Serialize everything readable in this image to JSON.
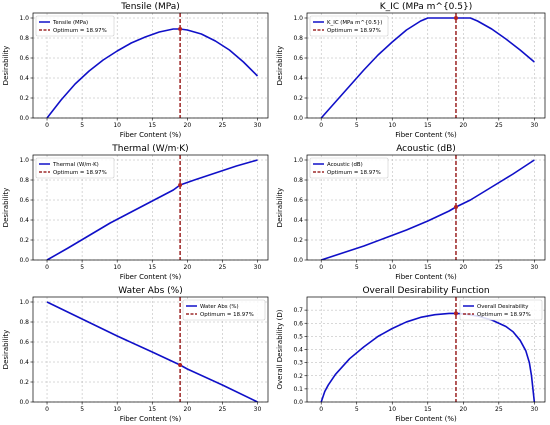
{
  "chart_data": [
    {
      "type": "line",
      "title": "Tensile (MPa)",
      "xlabel": "Fiber Content (%)",
      "ylabel": "Desirability",
      "xlim": [
        -2,
        31.5
      ],
      "ylim": [
        0,
        1.05
      ],
      "xticks": [
        "0",
        "5",
        "10",
        "15",
        "20",
        "25",
        "30"
      ],
      "yticks": [
        "0.0",
        "0.2",
        "0.4",
        "0.6",
        "0.8",
        "1.0"
      ],
      "grid": true,
      "legend": "top-left",
      "series": [
        {
          "name": "Tensile (MPa)",
          "color": "#1010c8",
          "x": [
            0,
            2,
            4,
            6,
            8,
            10,
            12,
            14,
            16,
            18,
            18.97,
            20,
            22,
            24,
            26,
            28,
            30
          ],
          "y": [
            0.0,
            0.18,
            0.34,
            0.47,
            0.58,
            0.67,
            0.75,
            0.81,
            0.86,
            0.89,
            0.89,
            0.88,
            0.84,
            0.77,
            0.68,
            0.56,
            0.42
          ]
        }
      ],
      "optimum": {
        "label": "Optimum = 18.97%",
        "x": 18.97,
        "y": 0.89,
        "color": "#8b0000"
      }
    },
    {
      "type": "line",
      "title": "K_IC (MPa m^{0.5})",
      "xlabel": "Fiber Content (%)",
      "ylabel": "Desirability",
      "xlim": [
        -2,
        31.5
      ],
      "ylim": [
        0,
        1.05
      ],
      "xticks": [
        "0",
        "5",
        "10",
        "15",
        "20",
        "25",
        "30"
      ],
      "yticks": [
        "0.0",
        "0.2",
        "0.4",
        "0.6",
        "0.8",
        "1.0"
      ],
      "grid": true,
      "legend": "top-left",
      "series": [
        {
          "name": "K_IC (MPa m^{0.5})",
          "color": "#1010c8",
          "x": [
            0,
            2,
            4,
            6,
            8,
            10,
            12,
            14,
            15,
            16,
            18,
            18.97,
            20,
            21,
            22,
            24,
            26,
            28,
            30
          ],
          "y": [
            0.0,
            0.16,
            0.32,
            0.48,
            0.63,
            0.76,
            0.88,
            0.97,
            1.0,
            1.0,
            1.0,
            1.0,
            1.0,
            1.0,
            0.97,
            0.89,
            0.79,
            0.68,
            0.56
          ]
        }
      ],
      "optimum": {
        "label": "Optimum = 18.97%",
        "x": 18.97,
        "y": 1.0,
        "color": "#8b0000"
      }
    },
    {
      "type": "line",
      "title": "Thermal (W/m·K)",
      "xlabel": "Fiber Content (%)",
      "ylabel": "Desirability",
      "xlim": [
        -2,
        31.5
      ],
      "ylim": [
        0,
        1.05
      ],
      "xticks": [
        "0",
        "5",
        "10",
        "15",
        "20",
        "25",
        "30"
      ],
      "yticks": [
        "0.0",
        "0.2",
        "0.4",
        "0.6",
        "0.8",
        "1.0"
      ],
      "grid": true,
      "legend": "top-left",
      "series": [
        {
          "name": "Thermal (W/m·K)",
          "color": "#1010c8",
          "x": [
            0,
            3,
            6,
            9,
            12,
            15,
            18,
            18.97,
            21,
            24,
            27,
            30
          ],
          "y": [
            0.0,
            0.12,
            0.245,
            0.37,
            0.48,
            0.59,
            0.7,
            0.75,
            0.8,
            0.87,
            0.94,
            1.0
          ]
        }
      ],
      "optimum": {
        "label": "Optimum = 18.97%",
        "x": 18.97,
        "y": 0.75,
        "color": "#8b0000"
      }
    },
    {
      "type": "line",
      "title": "Acoustic (dB)",
      "xlabel": "Fiber Content (%)",
      "ylabel": "Desirability",
      "xlim": [
        -2,
        31.5
      ],
      "ylim": [
        0,
        1.05
      ],
      "xticks": [
        "0",
        "5",
        "10",
        "15",
        "20",
        "25",
        "30"
      ],
      "yticks": [
        "0.0",
        "0.2",
        "0.4",
        "0.6",
        "0.8",
        "1.0"
      ],
      "grid": true,
      "legend": "top-left",
      "series": [
        {
          "name": "Acoustic (dB)",
          "color": "#1010c8",
          "x": [
            0,
            3,
            6,
            9,
            12,
            15,
            18,
            18.97,
            21,
            24,
            27,
            30
          ],
          "y": [
            0.0,
            0.07,
            0.14,
            0.22,
            0.3,
            0.39,
            0.49,
            0.53,
            0.6,
            0.73,
            0.86,
            1.0
          ]
        }
      ],
      "optimum": {
        "label": "Optimum = 18.97%",
        "x": 18.97,
        "y": 0.53,
        "color": "#8b0000"
      }
    },
    {
      "type": "line",
      "title": "Water Abs (%)",
      "xlabel": "Fiber Content (%)",
      "ylabel": "Desirability",
      "xlim": [
        -2,
        31.5
      ],
      "ylim": [
        0,
        1.05
      ],
      "xticks": [
        "0",
        "5",
        "10",
        "15",
        "20",
        "25",
        "30"
      ],
      "yticks": [
        "0.0",
        "0.2",
        "0.4",
        "0.6",
        "0.8",
        "1.0"
      ],
      "grid": true,
      "legend": "top-right",
      "series": [
        {
          "name": "Water Abs (%)",
          "color": "#1010c8",
          "x": [
            0,
            5,
            10,
            15,
            18.97,
            20,
            25,
            30
          ],
          "y": [
            1.0,
            0.83,
            0.66,
            0.5,
            0.37,
            0.33,
            0.17,
            0.0
          ]
        }
      ],
      "optimum": {
        "label": "Optimum = 18.97%",
        "x": 18.97,
        "y": 0.37,
        "color": "#8b0000"
      }
    },
    {
      "type": "line",
      "title": "Overall Desirability Function",
      "xlabel": "Fiber Content (%)",
      "ylabel": "Overall Desirability (D)",
      "xlim": [
        -2,
        31.5
      ],
      "ylim": [
        0,
        0.8
      ],
      "xticks": [
        "0",
        "5",
        "10",
        "15",
        "20",
        "25",
        "30"
      ],
      "yticks": [
        "0.0",
        "0.1",
        "0.2",
        "0.3",
        "0.4",
        "0.5",
        "0.6",
        "0.7"
      ],
      "grid": true,
      "legend": "top-right",
      "series": [
        {
          "name": "Overall Desirability",
          "color": "#1010c8",
          "x": [
            0,
            0.5,
            1,
            2,
            4,
            6,
            8,
            10,
            12,
            14,
            16,
            18,
            18.97,
            20,
            22,
            24,
            26,
            27,
            28,
            28.8,
            29.3,
            29.6,
            29.8,
            30
          ],
          "y": [
            0.0,
            0.08,
            0.13,
            0.21,
            0.33,
            0.42,
            0.5,
            0.56,
            0.61,
            0.645,
            0.665,
            0.675,
            0.675,
            0.672,
            0.655,
            0.625,
            0.575,
            0.535,
            0.47,
            0.39,
            0.3,
            0.2,
            0.1,
            0.0
          ]
        }
      ],
      "optimum": {
        "label": "Optimum = 18.97%",
        "x": 18.97,
        "y": 0.675,
        "color": "#8b0000"
      }
    }
  ]
}
